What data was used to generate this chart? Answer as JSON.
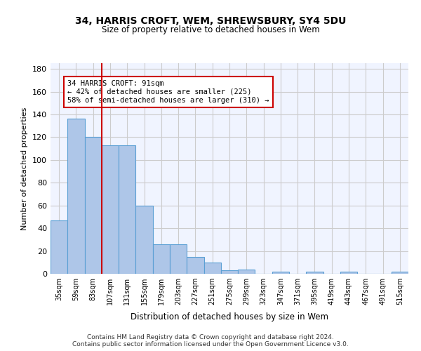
{
  "title": "34, HARRIS CROFT, WEM, SHREWSBURY, SY4 5DU",
  "subtitle": "Size of property relative to detached houses in Wem",
  "xlabel": "Distribution of detached houses by size in Wem",
  "ylabel": "Number of detached properties",
  "categories": [
    "35sqm",
    "59sqm",
    "83sqm",
    "107sqm",
    "131sqm",
    "155sqm",
    "179sqm",
    "203sqm",
    "227sqm",
    "251sqm",
    "275sqm",
    "299sqm",
    "323sqm",
    "347sqm",
    "371sqm",
    "395sqm",
    "419sqm",
    "443sqm",
    "467sqm",
    "491sqm",
    "515sqm"
  ],
  "values": [
    47,
    136,
    120,
    113,
    113,
    60,
    26,
    26,
    15,
    10,
    3,
    4,
    0,
    2,
    0,
    2,
    0,
    2,
    0,
    0,
    2
  ],
  "bar_color": "#aec6e8",
  "bar_edge_color": "#5a9fd4",
  "bar_width": 1.0,
  "vline_x": 2.5,
  "vline_color": "#cc0000",
  "annotation_text": "34 HARRIS CROFT: 91sqm\n← 42% of detached houses are smaller (225)\n58% of semi-detached houses are larger (310) →",
  "annotation_box_color": "#ffffff",
  "annotation_box_edge": "#cc0000",
  "ylim": [
    0,
    185
  ],
  "yticks": [
    0,
    20,
    40,
    60,
    80,
    100,
    120,
    140,
    160,
    180
  ],
  "footer": "Contains HM Land Registry data © Crown copyright and database right 2024.\nContains public sector information licensed under the Open Government Licence v3.0.",
  "bg_color": "#f0f4ff",
  "plot_bg_color": "#f0f4ff",
  "grid_color": "#cccccc"
}
